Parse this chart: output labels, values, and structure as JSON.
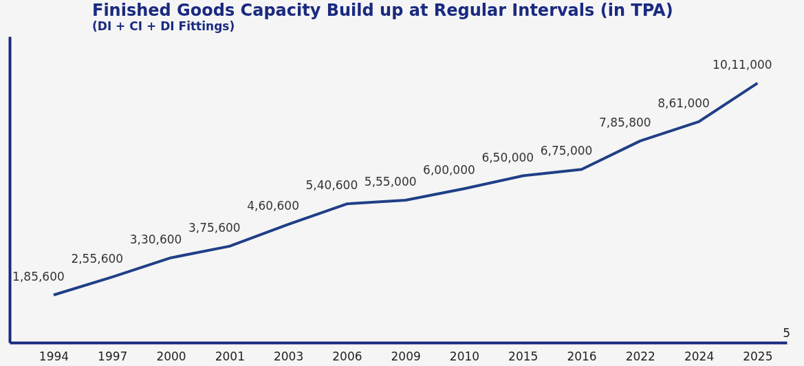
{
  "chart_data": {
    "type": "line",
    "title": "Finished Goods Capacity Build up at Regular Intervals (in TPA)",
    "subtitle": "(DI + CI + DI Fittings)",
    "categories": [
      "1994",
      "1997",
      "2000",
      "2001",
      "2003",
      "2006",
      "2009",
      "2010",
      "2015",
      "2016",
      "2022",
      "2024",
      "2025"
    ],
    "series": [
      {
        "color": "#1f3f86",
        "values": [
          185600,
          255600,
          330600,
          375600,
          460600,
          540600,
          555000,
          600000,
          650000,
          675000,
          785800,
          861000,
          1011000
        ],
        "value_labels": [
          "1,85,600",
          "2,55,600",
          "3,30,600",
          "3,75,600",
          "4,60,600",
          "5,40,600",
          "5,55,000",
          "6,00,000",
          "6,50,000",
          "6,75,000",
          "7,85,800",
          "8,61,000",
          "10,11,000"
        ]
      }
    ],
    "tick_labels": "x",
    "grid": false,
    "marker": "none",
    "line_style": "solid",
    "annotations": [
      "5"
    ]
  }
}
